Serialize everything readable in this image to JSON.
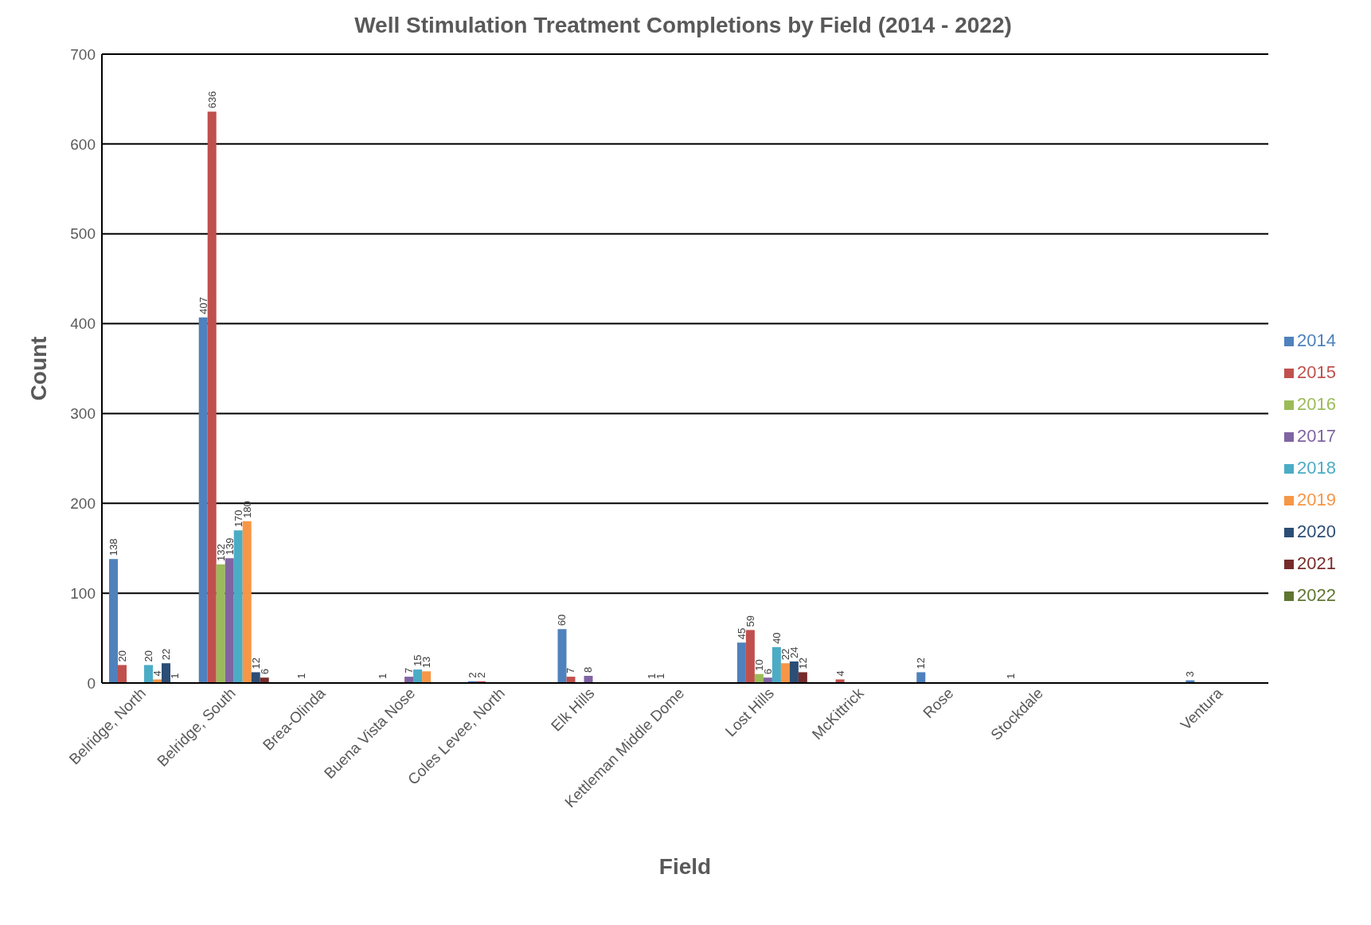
{
  "chart_data": {
    "type": "bar",
    "title": "Well Stimulation Treatment Completions by Field (2014 - 2022)",
    "xlabel": "Field",
    "ylabel": "Count",
    "categories": [
      "Belridge, North",
      "Belridge, South",
      "Brea-Olinda",
      "Buena Vista Nose",
      "Coles Levee, North",
      "Elk Hills",
      "Kettleman Middle Dome",
      "Lost Hills",
      "McKittrick",
      "Rose",
      "Stockdale",
      null,
      "Ventura"
    ],
    "series": [
      {
        "name": "2014",
        "color": "#4f81bd",
        "values": [
          138,
          407,
          null,
          1,
          2,
          60,
          1,
          45,
          null,
          12,
          1,
          null,
          3
        ]
      },
      {
        "name": "2015",
        "color": "#c0504d",
        "values": [
          20,
          636,
          1,
          null,
          2,
          7,
          1,
          59,
          4,
          null,
          null,
          null,
          null
        ]
      },
      {
        "name": "2016",
        "color": "#9bbb59",
        "values": [
          null,
          132,
          null,
          null,
          null,
          null,
          null,
          10,
          null,
          null,
          null,
          null,
          null
        ]
      },
      {
        "name": "2017",
        "color": "#8064a2",
        "values": [
          null,
          139,
          null,
          7,
          null,
          8,
          null,
          6,
          null,
          null,
          null,
          null,
          null
        ]
      },
      {
        "name": "2018",
        "color": "#4bacc6",
        "values": [
          20,
          170,
          null,
          15,
          null,
          null,
          null,
          40,
          null,
          null,
          null,
          null,
          null
        ]
      },
      {
        "name": "2019",
        "color": "#f79646",
        "values": [
          4,
          180,
          null,
          13,
          null,
          null,
          null,
          22,
          null,
          null,
          null,
          null,
          null
        ]
      },
      {
        "name": "2020",
        "color": "#2c4d75",
        "values": [
          22,
          12,
          null,
          null,
          null,
          null,
          null,
          24,
          null,
          null,
          null,
          null,
          null
        ]
      },
      {
        "name": "2021",
        "color": "#772c2a",
        "values": [
          1,
          6,
          null,
          null,
          null,
          null,
          null,
          12,
          null,
          null,
          null,
          null,
          null
        ]
      },
      {
        "name": "2022",
        "color": "#5f7530",
        "values": [
          null,
          null,
          null,
          null,
          null,
          null,
          null,
          null,
          null,
          null,
          null,
          null,
          null
        ]
      }
    ],
    "ylim": [
      0,
      700
    ],
    "yticks": [
      0,
      100,
      200,
      300,
      400,
      500,
      600,
      700
    ],
    "grid": "y",
    "legend": "right",
    "data_labels": true
  }
}
